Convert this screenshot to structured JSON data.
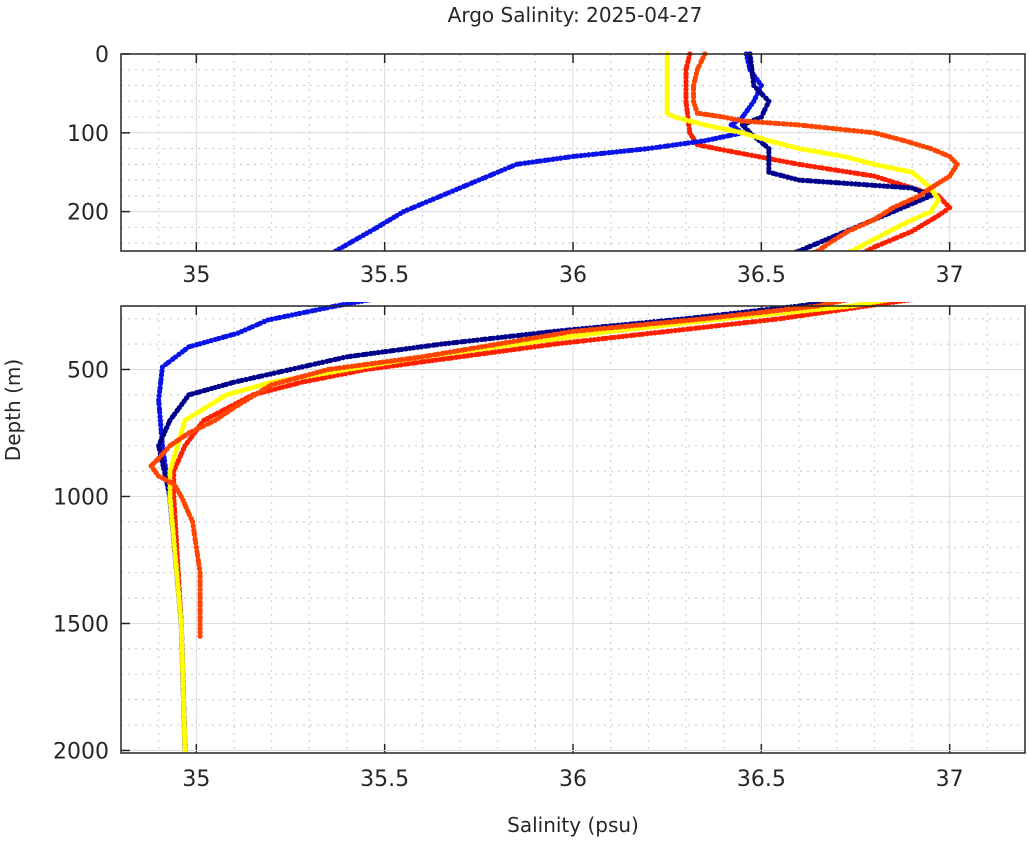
{
  "chart_data": {
    "type": "scatter",
    "title": "Argo Salinity: 2025-04-27",
    "xlabel": "Salinity (psu)",
    "ylabel": "Depth (m)",
    "grid": true,
    "panels": [
      {
        "name": "upper",
        "xlim": [
          34.8,
          37.2
        ],
        "ylim": [
          0,
          250
        ],
        "yticks": [
          "0",
          "100",
          "200"
        ],
        "yticks_v": [
          0,
          100,
          200
        ],
        "xticks": [
          "35",
          "35.5",
          "36",
          "36.5",
          "37"
        ],
        "xticks_v": [
          35,
          35.5,
          36,
          36.5,
          37
        ],
        "yminor": 20
      },
      {
        "name": "lower",
        "xlim": [
          34.8,
          37.2
        ],
        "ylim": [
          250,
          2010
        ],
        "yticks": [
          "500",
          "1000",
          "1500",
          "2000"
        ],
        "yticks_v": [
          500,
          1000,
          1500,
          2000
        ],
        "xticks": [
          "35",
          "35.5",
          "36",
          "36.5",
          "37"
        ],
        "xticks_v": [
          35,
          35.5,
          36,
          36.5,
          37
        ],
        "yminor": 100
      }
    ],
    "series": [
      {
        "name": "red profile",
        "color": "#ff2000",
        "depth": [
          0,
          20,
          60,
          100,
          115,
          120,
          140,
          155,
          170,
          180,
          195,
          205,
          225,
          245,
          250,
          300,
          350,
          400,
          450,
          500,
          550,
          600,
          700,
          800,
          900,
          1000,
          1500,
          2000
        ],
        "salinity": [
          36.31,
          36.3,
          36.3,
          36.31,
          36.33,
          36.38,
          36.6,
          36.8,
          36.9,
          36.97,
          37.0,
          36.97,
          36.9,
          36.8,
          36.78,
          36.55,
          36.25,
          35.95,
          35.7,
          35.45,
          35.28,
          35.15,
          35.02,
          34.97,
          34.94,
          34.94,
          34.96,
          34.97
        ]
      },
      {
        "name": "blue profile",
        "color": "#0a14e6",
        "depth": [
          0,
          20,
          40,
          60,
          80,
          90,
          100,
          110,
          120,
          130,
          140,
          160,
          180,
          200,
          220,
          250,
          305,
          357,
          411,
          490,
          620,
          800,
          1014,
          1500,
          2000
        ],
        "salinity": [
          36.46,
          36.47,
          36.5,
          36.48,
          36.45,
          36.42,
          36.45,
          36.35,
          36.2,
          36.0,
          35.85,
          35.75,
          35.65,
          35.55,
          35.48,
          35.37,
          35.19,
          35.11,
          34.98,
          34.91,
          34.9,
          34.91,
          34.93,
          34.96,
          34.97
        ]
      },
      {
        "name": "navy profile",
        "color": "#00008b",
        "depth": [
          0,
          40,
          60,
          80,
          90,
          100,
          120,
          150,
          160,
          170,
          180,
          200,
          220,
          240,
          250,
          300,
          350,
          400,
          450,
          500,
          550,
          600,
          700,
          800,
          1000,
          1500,
          2000
        ],
        "salinity": [
          36.47,
          36.48,
          36.52,
          36.5,
          36.45,
          36.47,
          36.52,
          36.52,
          36.6,
          36.9,
          36.95,
          36.85,
          36.75,
          36.65,
          36.6,
          36.3,
          35.95,
          35.65,
          35.4,
          35.25,
          35.1,
          34.98,
          34.93,
          34.9,
          34.93,
          34.96,
          34.97
        ]
      },
      {
        "name": "yellow profile",
        "color": "#ffff00",
        "depth": [
          0,
          75,
          80,
          90,
          100,
          110,
          120,
          130,
          140,
          150,
          170,
          185,
          200,
          215,
          230,
          240,
          250,
          300,
          350,
          400,
          450,
          500,
          550,
          600,
          700,
          800,
          900,
          1000,
          1500,
          2000
        ],
        "salinity": [
          36.25,
          36.25,
          36.27,
          36.35,
          36.45,
          36.52,
          36.6,
          36.72,
          36.8,
          36.9,
          36.95,
          36.97,
          36.95,
          36.88,
          36.82,
          36.78,
          36.74,
          36.4,
          36.1,
          35.85,
          35.6,
          35.4,
          35.2,
          35.08,
          34.97,
          34.95,
          34.93,
          34.93,
          34.96,
          34.97
        ]
      },
      {
        "name": "orange profile",
        "color": "#ff4500",
        "depth": [
          0,
          10,
          20,
          40,
          60,
          75,
          80,
          85,
          90,
          95,
          100,
          110,
          120,
          130,
          140,
          155,
          170,
          180,
          195,
          210,
          225,
          240,
          250,
          300,
          350,
          400,
          450,
          500,
          560,
          650,
          700,
          750,
          800,
          850,
          880,
          920,
          950,
          1000,
          1100,
          1200,
          1300,
          1400,
          1550
        ],
        "salinity": [
          36.35,
          36.34,
          36.33,
          36.32,
          36.32,
          36.33,
          36.4,
          36.45,
          36.6,
          36.7,
          36.8,
          36.88,
          36.95,
          37.0,
          37.02,
          37.0,
          36.95,
          36.92,
          36.85,
          36.8,
          36.73,
          36.68,
          36.65,
          36.35,
          36.0,
          35.8,
          35.6,
          35.35,
          35.2,
          35.1,
          35.05,
          34.98,
          34.93,
          34.9,
          34.88,
          34.9,
          34.94,
          34.96,
          34.99,
          35.0,
          35.01,
          35.01,
          35.01
        ]
      }
    ]
  }
}
